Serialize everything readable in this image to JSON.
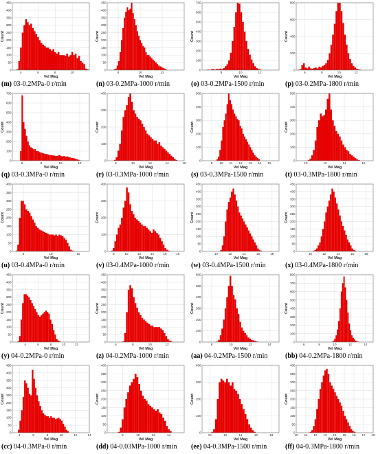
{
  "colors": {
    "bar": "#e60000",
    "grid": "#d4d4d4",
    "frame": "#6e6e6e"
  },
  "chart_data": [
    {
      "type": "bar",
      "id": "m",
      "caption": "03-0.2MPa-0 r/min",
      "xlabel": "Vel Mag",
      "ylabel": "Count",
      "xlim": [
        3,
        12
      ],
      "ylim": [
        0,
        450
      ],
      "xticks": [
        4,
        6,
        8,
        10
      ],
      "yticks": [
        0,
        50,
        100,
        150,
        200,
        250,
        300,
        350,
        400,
        450
      ],
      "bin_start": 3.5,
      "bin_width": 0.2,
      "values": [
        5,
        60,
        150,
        250,
        300,
        340,
        320,
        300,
        310,
        280,
        260,
        240,
        220,
        200,
        180,
        170,
        160,
        150,
        150,
        140,
        130,
        140,
        120,
        110,
        120,
        100,
        100,
        100,
        95,
        110,
        90,
        100,
        120,
        100,
        110,
        80,
        95,
        60,
        50,
        40,
        10,
        5
      ]
    },
    {
      "type": "bar",
      "id": "n",
      "caption": "03-0.2MPa-1000 r/min",
      "xlabel": "Vel Mag",
      "ylabel": "Count",
      "xlim": [
        7,
        14
      ],
      "ylim": [
        0,
        450
      ],
      "xticks": [
        8,
        10,
        12
      ],
      "yticks": [
        0,
        50,
        100,
        150,
        200,
        250,
        300,
        350,
        400,
        450
      ],
      "bin_start": 7.6,
      "bin_width": 0.13,
      "values": [
        5,
        10,
        30,
        60,
        120,
        200,
        280,
        350,
        390,
        420,
        400,
        410,
        450,
        380,
        340,
        300,
        260,
        230,
        200,
        180,
        160,
        150,
        120,
        100,
        100,
        90,
        80,
        70,
        60,
        50,
        40,
        30,
        25,
        20,
        15,
        10,
        5
      ]
    },
    {
      "type": "bar",
      "id": "o",
      "caption": "03-0.2MPa-1500 r/min",
      "xlabel": "Vel Mag",
      "ylabel": "Count",
      "xlim": [
        6,
        14
      ],
      "ylim": [
        0,
        700
      ],
      "xticks": [
        8,
        10,
        12
      ],
      "yticks": [
        0,
        100,
        200,
        300,
        400,
        500,
        600,
        700
      ],
      "bin_start": 6.2,
      "bin_width": 0.18,
      "values": [
        0,
        2,
        5,
        3,
        8,
        10,
        5,
        12,
        8,
        15,
        10,
        20,
        40,
        60,
        100,
        180,
        300,
        450,
        600,
        700,
        690,
        600,
        500,
        400,
        300,
        220,
        160,
        110,
        70,
        40,
        20,
        10,
        5,
        3
      ]
    },
    {
      "type": "bar",
      "id": "p",
      "caption": "03-0.2MPa-1800 r/min",
      "xlabel": "Vel Mag",
      "ylabel": "Count",
      "xlim": [
        5,
        14
      ],
      "ylim": [
        0,
        800
      ],
      "xticks": [
        6,
        8,
        10,
        12
      ],
      "yticks": [
        0,
        200,
        400,
        600,
        800
      ],
      "bin_start": 5.2,
      "bin_width": 0.2,
      "values": [
        5,
        10,
        60,
        80,
        30,
        20,
        40,
        20,
        15,
        25,
        30,
        20,
        40,
        30,
        50,
        60,
        80,
        120,
        200,
        300,
        420,
        550,
        700,
        850,
        800,
        700,
        560,
        420,
        300,
        200,
        130,
        80,
        50,
        30,
        15,
        8,
        5
      ]
    },
    {
      "type": "bar",
      "id": "q",
      "caption": "03-0.3MPa-0 r/min",
      "xlabel": "Vel Mag",
      "ylabel": "Count",
      "xlim": [
        5,
        13
      ],
      "ylim": [
        0,
        700
      ],
      "xticks": [
        6,
        8,
        10,
        12
      ],
      "yticks": [
        0,
        100,
        200,
        300,
        400,
        500,
        600,
        700
      ],
      "bin_start": 5.8,
      "bin_width": 0.15,
      "values": [
        100,
        680,
        400,
        330,
        260,
        200,
        160,
        140,
        130,
        120,
        120,
        100,
        100,
        90,
        85,
        80,
        75,
        70,
        70,
        65,
        60,
        60,
        55,
        55,
        50,
        50,
        55,
        60,
        50,
        45,
        50,
        40,
        45,
        40,
        35,
        30,
        30,
        25,
        20,
        15,
        10,
        5
      ]
    },
    {
      "type": "bar",
      "id": "r",
      "caption": "03-0.3MPa-1000 r/min",
      "xlabel": "Vel Mag",
      "ylabel": "Count",
      "xlim": [
        7,
        16
      ],
      "ylim": [
        0,
        400
      ],
      "xticks": [
        8,
        10,
        12,
        14,
        16
      ],
      "yticks": [
        0,
        100,
        200,
        300,
        400
      ],
      "bin_start": 7.8,
      "bin_width": 0.2,
      "values": [
        5,
        20,
        60,
        100,
        180,
        260,
        300,
        330,
        380,
        400,
        350,
        300,
        280,
        260,
        250,
        240,
        220,
        200,
        180,
        160,
        150,
        140,
        130,
        120,
        120,
        100,
        110,
        90,
        80,
        70,
        60,
        50,
        40,
        30,
        20,
        10,
        5
      ]
    },
    {
      "type": "bar",
      "id": "s",
      "caption": "03-0.3MPa-1500 r/min",
      "xlabel": "Vel Mag",
      "ylabel": "Count",
      "xlim": [
        8,
        16
      ],
      "ylim": [
        0,
        500
      ],
      "xticks": [
        9,
        10,
        11,
        12,
        13,
        14,
        15
      ],
      "yticks": [
        0,
        100,
        200,
        300,
        400,
        500
      ],
      "bin_start": 9.5,
      "bin_width": 0.15,
      "values": [
        10,
        30,
        80,
        150,
        250,
        300,
        350,
        420,
        500,
        450,
        420,
        380,
        350,
        330,
        310,
        300,
        260,
        240,
        200,
        180,
        160,
        140,
        120,
        100,
        80,
        60,
        40,
        30,
        20,
        10
      ]
    },
    {
      "type": "bar",
      "id": "t",
      "caption": "03-0.3MPa-1800 r/min",
      "xlabel": "Vel Mag",
      "ylabel": "Count",
      "xlim": [
        9,
        17
      ],
      "ylim": [
        0,
        500
      ],
      "xticks": [
        10,
        12,
        14,
        16
      ],
      "yticks": [
        0,
        100,
        200,
        300,
        400,
        500
      ],
      "bin_start": 10.2,
      "bin_width": 0.18,
      "values": [
        5,
        15,
        40,
        80,
        150,
        250,
        300,
        350,
        330,
        340,
        380,
        460,
        500,
        380,
        300,
        260,
        220,
        200,
        180,
        150,
        120,
        100,
        80,
        70,
        50,
        40,
        30,
        20,
        10,
        5
      ]
    },
    {
      "type": "bar",
      "id": "u",
      "caption": "03-0.4MPa-0 r/min",
      "xlabel": "Vel Mag",
      "ylabel": "Count",
      "xlim": [
        3,
        17
      ],
      "ylim": [
        0,
        400
      ],
      "xticks": [
        5,
        10,
        15
      ],
      "yticks": [
        0,
        50,
        100,
        150,
        200,
        250,
        300,
        350,
        400
      ],
      "bin_start": 3.6,
      "bin_width": 0.3,
      "values": [
        5,
        40,
        200,
        300,
        300,
        280,
        250,
        240,
        230,
        210,
        190,
        170,
        150,
        140,
        130,
        125,
        120,
        115,
        110,
        105,
        100,
        100,
        100,
        95,
        100,
        90,
        100,
        95,
        90,
        80,
        70,
        50,
        30,
        10,
        5
      ]
    },
    {
      "type": "bar",
      "id": "v",
      "caption": "03-0.4MPa-1000 r/min",
      "xlabel": "Vel Mag",
      "ylabel": "Count",
      "xlim": [
        7,
        19
      ],
      "ylim": [
        0,
        400
      ],
      "xticks": [
        8,
        10,
        12,
        14,
        16,
        18
      ],
      "yticks": [
        0,
        100,
        200,
        300,
        400
      ],
      "bin_start": 7.6,
      "bin_width": 0.26,
      "values": [
        5,
        20,
        60,
        100,
        140,
        160,
        200,
        260,
        300,
        380,
        350,
        280,
        240,
        220,
        200,
        190,
        180,
        170,
        160,
        150,
        150,
        140,
        130,
        120,
        110,
        130,
        120,
        110,
        100,
        80,
        60,
        40,
        20,
        10,
        5
      ]
    },
    {
      "type": "bar",
      "id": "w",
      "caption": "03-0.4MPa-1500 r/min",
      "xlabel": "Vel Mag",
      "ylabel": "Count",
      "xlim": [
        8,
        19
      ],
      "ylim": [
        0,
        450
      ],
      "xticks": [
        10,
        12,
        14,
        16,
        18
      ],
      "yticks": [
        0,
        50,
        100,
        150,
        200,
        250,
        300,
        350,
        400,
        450
      ],
      "bin_start": 10.6,
      "bin_width": 0.22,
      "values": [
        10,
        40,
        100,
        200,
        280,
        330,
        360,
        400,
        420,
        380,
        340,
        300,
        260,
        240,
        220,
        200,
        180,
        160,
        140,
        120,
        100,
        80,
        60,
        40,
        20,
        10,
        5
      ]
    },
    {
      "type": "bar",
      "id": "x",
      "caption": "03-0.4MPa-1800 r/min",
      "xlabel": "Vel Mag",
      "ylabel": "Count",
      "xlim": [
        8,
        19
      ],
      "ylim": [
        0,
        450
      ],
      "xticks": [
        10,
        12,
        14,
        16,
        18
      ],
      "yticks": [
        0,
        50,
        100,
        150,
        200,
        250,
        300,
        350,
        400,
        450
      ],
      "bin_start": 10.4,
      "bin_width": 0.22,
      "values": [
        5,
        10,
        20,
        40,
        60,
        100,
        150,
        200,
        260,
        300,
        340,
        380,
        420,
        400,
        360,
        320,
        280,
        240,
        200,
        170,
        140,
        110,
        80,
        60,
        40,
        20,
        10,
        5
      ]
    },
    {
      "type": "bar",
      "id": "y",
      "caption": "04-0.2MPa-0 r/min",
      "xlabel": "Vel Mag",
      "ylabel": "Count",
      "xlim": [
        2,
        14
      ],
      "ylim": [
        0,
        450
      ],
      "xticks": [
        4,
        6,
        8,
        10,
        12
      ],
      "yticks": [
        0,
        50,
        100,
        150,
        200,
        250,
        300,
        350,
        400,
        450
      ],
      "bin_start": 2.8,
      "bin_width": 0.24,
      "values": [
        5,
        40,
        150,
        260,
        320,
        320,
        310,
        300,
        280,
        260,
        240,
        220,
        200,
        180,
        170,
        180,
        190,
        200,
        210,
        200,
        190,
        150,
        120,
        80,
        50,
        20,
        10,
        5
      ]
    },
    {
      "type": "bar",
      "id": "z",
      "caption": "04-0.2MPa-1000 r/min",
      "xlabel": "Vel Mag",
      "ylabel": "Count",
      "xlim": [
        5,
        14
      ],
      "ylim": [
        0,
        450
      ],
      "xticks": [
        6,
        8,
        10,
        12
      ],
      "yticks": [
        0,
        50,
        100,
        150,
        200,
        250,
        300,
        350,
        400,
        450
      ],
      "bin_start": 6.8,
      "bin_width": 0.2,
      "values": [
        5,
        60,
        200,
        350,
        380,
        360,
        300,
        260,
        230,
        200,
        180,
        160,
        150,
        140,
        130,
        120,
        110,
        110,
        100,
        100,
        100,
        100,
        90,
        80,
        60,
        40,
        20,
        10,
        5
      ]
    },
    {
      "type": "bar",
      "id": "aa",
      "caption": "04-0.2MPa-1500 r/min",
      "xlabel": "Vel Mag",
      "ylabel": "Count",
      "xlim": [
        7,
        15
      ],
      "ylim": [
        0,
        600
      ],
      "xticks": [
        8,
        10,
        12,
        14
      ],
      "yticks": [
        0,
        100,
        200,
        300,
        400,
        500,
        600
      ],
      "bin_start": 8.5,
      "bin_width": 0.17,
      "values": [
        5,
        20,
        60,
        120,
        200,
        300,
        400,
        500,
        590,
        500,
        420,
        380,
        300,
        250,
        180,
        130,
        100,
        80,
        60,
        40,
        30,
        20,
        15,
        10,
        5,
        3
      ]
    },
    {
      "type": "bar",
      "id": "bb",
      "caption": "04-0.2MPa-1800 r/min",
      "xlabel": "Vel Mag",
      "ylabel": "Count",
      "xlim": [
        5,
        15
      ],
      "ylim": [
        0,
        800
      ],
      "xticks": [
        6,
        8,
        10,
        12,
        14
      ],
      "yticks": [
        0,
        100,
        200,
        300,
        400,
        500,
        600,
        700,
        800
      ],
      "bin_start": 9.6,
      "bin_width": 0.17,
      "values": [
        5,
        15,
        40,
        80,
        150,
        250,
        400,
        600,
        700,
        780,
        650,
        500,
        350,
        220,
        140,
        80,
        50,
        30,
        15,
        8,
        5
      ]
    },
    {
      "type": "bar",
      "id": "cc",
      "caption": "04-0.3MPa-0 r/min",
      "xlabel": "Vel Mag",
      "ylabel": "Count",
      "xlim": [
        3,
        14
      ],
      "ylim": [
        0,
        450
      ],
      "xticks": [
        4,
        6,
        8,
        10,
        12,
        14
      ],
      "yticks": [
        0,
        50,
        100,
        150,
        200,
        250,
        300,
        350,
        400,
        450
      ],
      "bin_start": 3.8,
      "bin_width": 0.22,
      "values": [
        20,
        80,
        150,
        240,
        350,
        330,
        300,
        260,
        250,
        420,
        360,
        300,
        250,
        210,
        180,
        150,
        130,
        120,
        110,
        110,
        100,
        110,
        100,
        100,
        90,
        95,
        100,
        90,
        80,
        60,
        40,
        20,
        10
      ]
    },
    {
      "type": "bar",
      "id": "dd",
      "caption": "04-0.03MPa-1000 r/min",
      "xlabel": "Vel Mag",
      "ylabel": "Count",
      "xlim": [
        6,
        16
      ],
      "ylim": [
        0,
        400
      ],
      "xticks": [
        8,
        10,
        12,
        14
      ],
      "yticks": [
        0,
        50,
        100,
        150,
        200,
        250,
        300,
        350,
        400
      ],
      "bin_start": 7.4,
      "bin_width": 0.24,
      "values": [
        5,
        30,
        80,
        150,
        200,
        240,
        280,
        300,
        320,
        350,
        330,
        290,
        250,
        220,
        200,
        190,
        170,
        160,
        150,
        140,
        130,
        140,
        120,
        110,
        90,
        70,
        40,
        20,
        10
      ]
    },
    {
      "type": "bar",
      "id": "ee",
      "caption": "04-0.3MPa-1500 r/min",
      "xlabel": "Vel Mag",
      "ylabel": "Count",
      "xlim": [
        9,
        19
      ],
      "ylim": [
        0,
        400
      ],
      "xticks": [
        10,
        12,
        14,
        16,
        18
      ],
      "yticks": [
        0,
        100,
        200,
        300,
        400
      ],
      "bin_start": 10.2,
      "bin_width": 0.24,
      "values": [
        5,
        20,
        80,
        200,
        300,
        320,
        310,
        300,
        320,
        300,
        280,
        300,
        260,
        250,
        230,
        200,
        170,
        140,
        110,
        80,
        50,
        30,
        15,
        5
      ]
    },
    {
      "type": "bar",
      "id": "ff",
      "caption": "04-0.3MPa-1800 r/min",
      "xlabel": "Vel Mag",
      "ylabel": "Count",
      "xlim": [
        10,
        18
      ],
      "ylim": [
        0,
        400
      ],
      "xticks": [
        10,
        11,
        12,
        13,
        14,
        15,
        16,
        17,
        18
      ],
      "yticks": [
        0,
        50,
        100,
        150,
        200,
        250,
        300,
        350,
        400
      ],
      "bin_start": 11.4,
      "bin_width": 0.17,
      "values": [
        5,
        15,
        40,
        80,
        140,
        200,
        260,
        300,
        340,
        370,
        380,
        350,
        300,
        280,
        260,
        240,
        220,
        200,
        180,
        160,
        130,
        100,
        80,
        60,
        40,
        20,
        10,
        5
      ]
    }
  ]
}
